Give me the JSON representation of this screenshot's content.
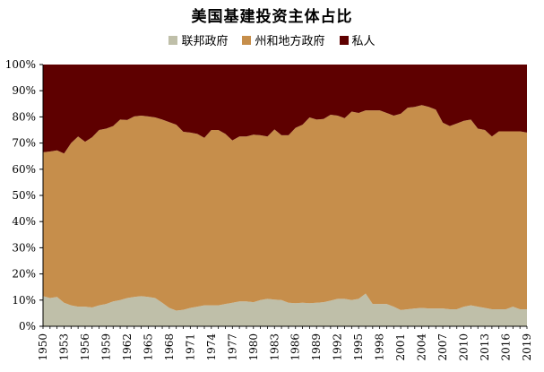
{
  "chart_data": {
    "type": "area",
    "stacked": "percent",
    "title": "美国基建投资主体占比",
    "x": [
      1950,
      1951,
      1952,
      1953,
      1954,
      1955,
      1956,
      1957,
      1958,
      1959,
      1960,
      1961,
      1962,
      1963,
      1964,
      1965,
      1966,
      1967,
      1968,
      1969,
      1970,
      1971,
      1972,
      1973,
      1974,
      1975,
      1976,
      1977,
      1978,
      1979,
      1980,
      1981,
      1982,
      1983,
      1984,
      1985,
      1986,
      1987,
      1988,
      1989,
      1990,
      1991,
      1992,
      1993,
      1994,
      1995,
      1996,
      1997,
      1998,
      1999,
      2000,
      2001,
      2002,
      2003,
      2004,
      2005,
      2006,
      2007,
      2008,
      2009,
      2010,
      2011,
      2012,
      2013,
      2014,
      2015,
      2016,
      2017,
      2018,
      2019
    ],
    "x_tick_labels": [
      "1950",
      "1953",
      "1956",
      "1959",
      "1962",
      "1965",
      "1968",
      "1971",
      "1974",
      "1977",
      "1980",
      "1983",
      "1986",
      "1989",
      "1992",
      "1995",
      "1998",
      "2001",
      "2004",
      "2007",
      "2010",
      "2013",
      "2016",
      "2019"
    ],
    "y_tick_labels": [
      "0%",
      "10%",
      "20%",
      "30%",
      "40%",
      "50%",
      "60%",
      "70%",
      "80%",
      "90%",
      "100%"
    ],
    "ylim": [
      0,
      100
    ],
    "legend_position": "top",
    "series": [
      {
        "name": "联邦政府",
        "color": "#bfbfa9",
        "values": [
          11.5,
          10.8,
          11.2,
          9,
          8,
          7.5,
          7.5,
          7.2,
          8,
          8.5,
          9.5,
          10,
          10.8,
          11.2,
          11.5,
          11.2,
          10.8,
          9,
          7,
          6,
          6.3,
          7,
          7.5,
          8,
          8,
          8,
          8.5,
          9,
          9.5,
          9.5,
          9.2,
          10,
          10.5,
          10.2,
          10,
          9,
          8.8,
          9,
          8.8,
          9,
          9.2,
          9.8,
          10.5,
          10.5,
          10,
          10.5,
          12.5,
          8.5,
          8.5,
          8.5,
          7.5,
          6.2,
          6.5,
          6.8,
          7,
          6.8,
          6.8,
          6.8,
          6.5,
          6.5,
          7.5,
          8,
          7.5,
          7,
          6.5,
          6.5,
          6.5,
          7.5,
          6.5,
          6.5
        ]
      },
      {
        "name": "州和地方政府",
        "color": "#c68e4b",
        "values": [
          55,
          56,
          56,
          57,
          62,
          65,
          63,
          65,
          67,
          67,
          67,
          69,
          68,
          69,
          69,
          69,
          69,
          70,
          71,
          71,
          68,
          67,
          66,
          64,
          67,
          67,
          65,
          62,
          63,
          63,
          64,
          63,
          62,
          65,
          63,
          64,
          67,
          68,
          71,
          70,
          70,
          71,
          70,
          69,
          72,
          71,
          70,
          74,
          74,
          73,
          73,
          75,
          77,
          77,
          77.5,
          77,
          76,
          71,
          70,
          71,
          71,
          71,
          68,
          68,
          66,
          68,
          68,
          67,
          68,
          67.5
        ]
      },
      {
        "name": "私人",
        "color": "#5e0000",
        "values": [
          33.5,
          33.2,
          32.8,
          34,
          30,
          27.5,
          29.5,
          27.8,
          25,
          24.5,
          23.5,
          21,
          21.2,
          19.8,
          19.5,
          19.8,
          20.2,
          21,
          22,
          23,
          25.7,
          26,
          26.5,
          28,
          25,
          25,
          26.5,
          29,
          27.5,
          27.5,
          26.8,
          27,
          27.5,
          24.8,
          27,
          27,
          24.2,
          23,
          20.2,
          21,
          20.8,
          19.2,
          19.5,
          20.5,
          18,
          18.5,
          17.5,
          17.5,
          17.5,
          18.5,
          19.5,
          18.8,
          16.5,
          16.2,
          15.5,
          16.2,
          17.2,
          22.2,
          23.5,
          22.5,
          21.5,
          21,
          24.5,
          25,
          27.5,
          25.5,
          25.5,
          25.5,
          25.5,
          26
        ]
      }
    ]
  }
}
